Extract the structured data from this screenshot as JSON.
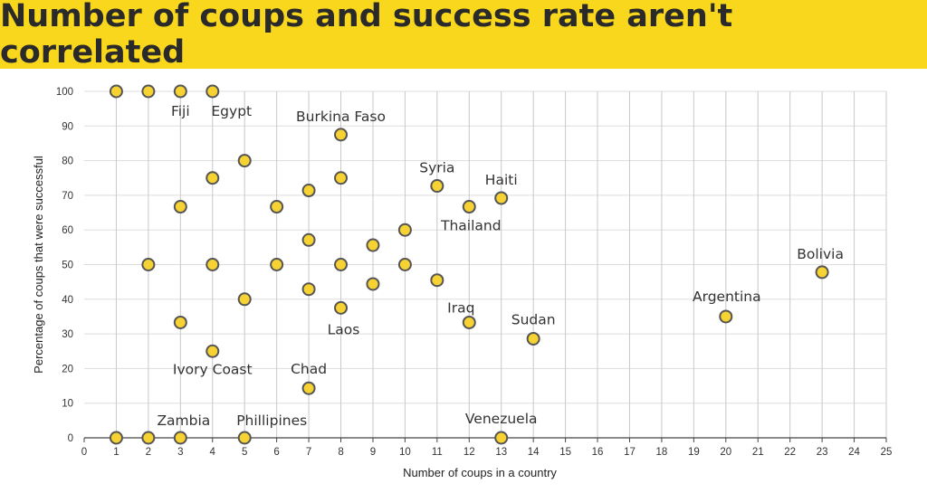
{
  "title": "Number of coups and success rate aren't correlated",
  "colors": {
    "banner": "#f9d71c",
    "point_fill": "#f6d232",
    "point_stroke": "#555555",
    "grid": "#c8c8c8"
  },
  "chart_data": {
    "type": "scatter",
    "title": "Number of coups and success rate aren't correlated",
    "xlabel": "Number of coups in a country",
    "ylabel": "Percentage of coups that were successful",
    "xlim": [
      0,
      25
    ],
    "ylim": [
      0,
      100
    ],
    "xticks": [
      0,
      1,
      2,
      3,
      4,
      5,
      6,
      7,
      8,
      9,
      10,
      11,
      12,
      13,
      14,
      15,
      16,
      17,
      18,
      19,
      20,
      21,
      22,
      23,
      24,
      25
    ],
    "yticks": [
      0,
      10,
      20,
      30,
      40,
      50,
      60,
      70,
      80,
      90,
      100
    ],
    "grid": "vertical and horizontal",
    "points": [
      {
        "x": 1,
        "y": 100
      },
      {
        "x": 2,
        "y": 100
      },
      {
        "x": 3,
        "y": 100
      },
      {
        "x": 4,
        "y": 100
      },
      {
        "x": 8,
        "y": 87.5
      },
      {
        "x": 5,
        "y": 80
      },
      {
        "x": 4,
        "y": 75
      },
      {
        "x": 8,
        "y": 75
      },
      {
        "x": 11,
        "y": 72.7
      },
      {
        "x": 7,
        "y": 71.4
      },
      {
        "x": 13,
        "y": 69.2
      },
      {
        "x": 3,
        "y": 66.7
      },
      {
        "x": 6,
        "y": 66.7
      },
      {
        "x": 12,
        "y": 66.7
      },
      {
        "x": 10,
        "y": 60
      },
      {
        "x": 7,
        "y": 57.1
      },
      {
        "x": 9,
        "y": 55.6
      },
      {
        "x": 2,
        "y": 50
      },
      {
        "x": 4,
        "y": 50
      },
      {
        "x": 6,
        "y": 50
      },
      {
        "x": 8,
        "y": 50
      },
      {
        "x": 10,
        "y": 50
      },
      {
        "x": 23,
        "y": 47.8
      },
      {
        "x": 11,
        "y": 45.5
      },
      {
        "x": 9,
        "y": 44.4
      },
      {
        "x": 7,
        "y": 42.9
      },
      {
        "x": 5,
        "y": 40
      },
      {
        "x": 8,
        "y": 37.5
      },
      {
        "x": 20,
        "y": 35
      },
      {
        "x": 3,
        "y": 33.3
      },
      {
        "x": 12,
        "y": 33.3
      },
      {
        "x": 14,
        "y": 28.6
      },
      {
        "x": 4,
        "y": 25
      },
      {
        "x": 7,
        "y": 14.3
      },
      {
        "x": 1,
        "y": 0
      },
      {
        "x": 2,
        "y": 0
      },
      {
        "x": 3,
        "y": 0
      },
      {
        "x": 5,
        "y": 0
      },
      {
        "x": 13,
        "y": 0
      }
    ],
    "annotations": [
      {
        "text": "Fiji",
        "x": 3,
        "y": 100
      },
      {
        "text": "Egypt",
        "x": 4,
        "y": 100
      },
      {
        "text": "Burkina Faso",
        "x": 8,
        "y": 87.5
      },
      {
        "text": "Syria",
        "x": 11,
        "y": 72.7
      },
      {
        "text": "Haiti",
        "x": 13,
        "y": 69.2
      },
      {
        "text": "Thailand",
        "x": 12,
        "y": 66.7
      },
      {
        "text": "Bolivia",
        "x": 23,
        "y": 47.8
      },
      {
        "text": "Argentina",
        "x": 20,
        "y": 35
      },
      {
        "text": "Iraq",
        "x": 12,
        "y": 33.3
      },
      {
        "text": "Sudan",
        "x": 14,
        "y": 28.6
      },
      {
        "text": "Laos",
        "x": 8,
        "y": 37.5
      },
      {
        "text": "Ivory Coast",
        "x": 4,
        "y": 25
      },
      {
        "text": "Chad",
        "x": 7,
        "y": 14.3
      },
      {
        "text": "Zambia",
        "x": 2,
        "y": 0
      },
      {
        "text": "Phillipines",
        "x": 5,
        "y": 0
      },
      {
        "text": "Venezuela",
        "x": 13,
        "y": 0
      }
    ]
  }
}
